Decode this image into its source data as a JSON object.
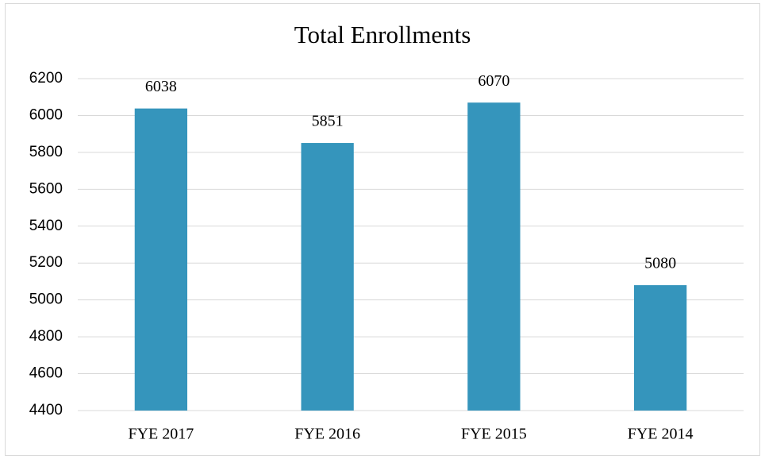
{
  "chart_data": {
    "type": "bar",
    "title": "Total Enrollments",
    "categories": [
      "FYE 2017",
      "FYE 2016",
      "FYE 2015",
      "FYE 2014"
    ],
    "values": [
      6038,
      5851,
      6070,
      5080
    ],
    "color": "#3595bc",
    "ylim": [
      4400,
      6200
    ],
    "yticks": [
      4400,
      4600,
      4800,
      5000,
      5200,
      5400,
      5600,
      5800,
      6000,
      6200
    ],
    "grid": true
  }
}
